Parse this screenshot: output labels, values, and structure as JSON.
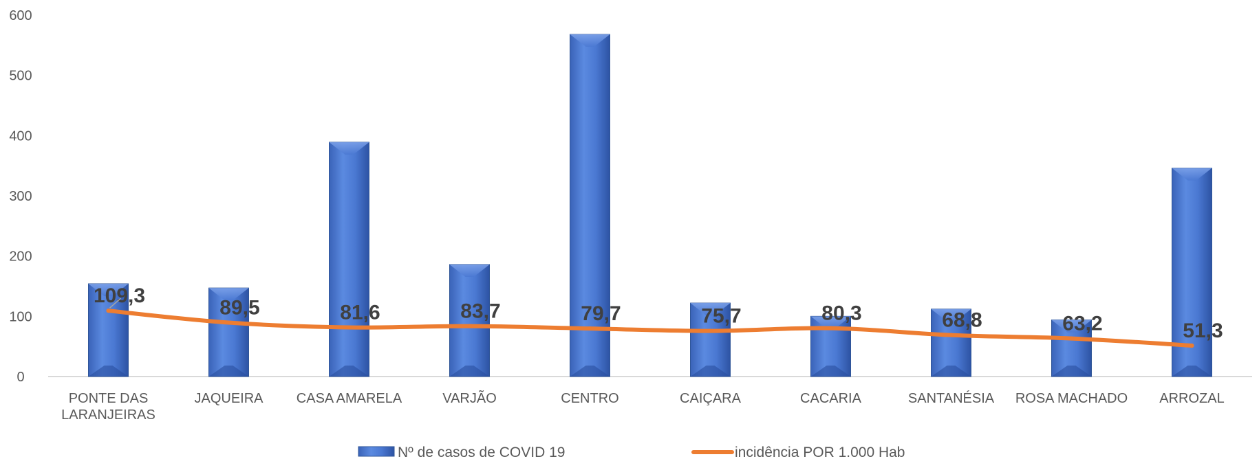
{
  "chart_data": {
    "type": "bar",
    "categories": [
      "PONTE DAS LARANJEIRAS",
      "JAQUEIRA",
      "CASA AMARELA",
      "VARJÃO",
      "CENTRO",
      "CAIÇARA",
      "CACARIA",
      "SANTANÉSIA",
      "ROSA MACHADO",
      "ARROZAL"
    ],
    "category_lines": [
      [
        "PONTE DAS",
        "LARANJEIRAS"
      ],
      [
        "JAQUEIRA"
      ],
      [
        "CASA AMARELA"
      ],
      [
        "VARJÃO"
      ],
      [
        "CENTRO"
      ],
      [
        "CAIÇARA"
      ],
      [
        "CACARIA"
      ],
      [
        "SANTANÉSIA"
      ],
      [
        "ROSA MACHADO"
      ],
      [
        "ARROZAL"
      ]
    ],
    "series": [
      {
        "name": "Nº de casos de COVID 19",
        "type": "bar",
        "color": "#4472C4",
        "values": [
          154,
          147,
          389,
          186,
          568,
          122,
          100,
          112,
          94,
          346
        ]
      },
      {
        "name": "incidência POR 1.000 Hab",
        "type": "line",
        "color": "#ED7D31",
        "values": [
          109.3,
          89.5,
          81.6,
          83.7,
          79.7,
          75.7,
          80.3,
          68.8,
          63.2,
          51.3
        ],
        "labels": [
          "109,3",
          "89,5",
          "81,6",
          "83,7",
          "79,7",
          "75,7",
          "80,3",
          "68,8",
          "63,2",
          "51,3"
        ]
      }
    ],
    "ylim": [
      0,
      600
    ],
    "yticks": [
      0,
      100,
      200,
      300,
      400,
      500,
      600
    ],
    "grid": false,
    "legend_position": "bottom",
    "title": "",
    "xlabel": "",
    "ylabel": ""
  }
}
